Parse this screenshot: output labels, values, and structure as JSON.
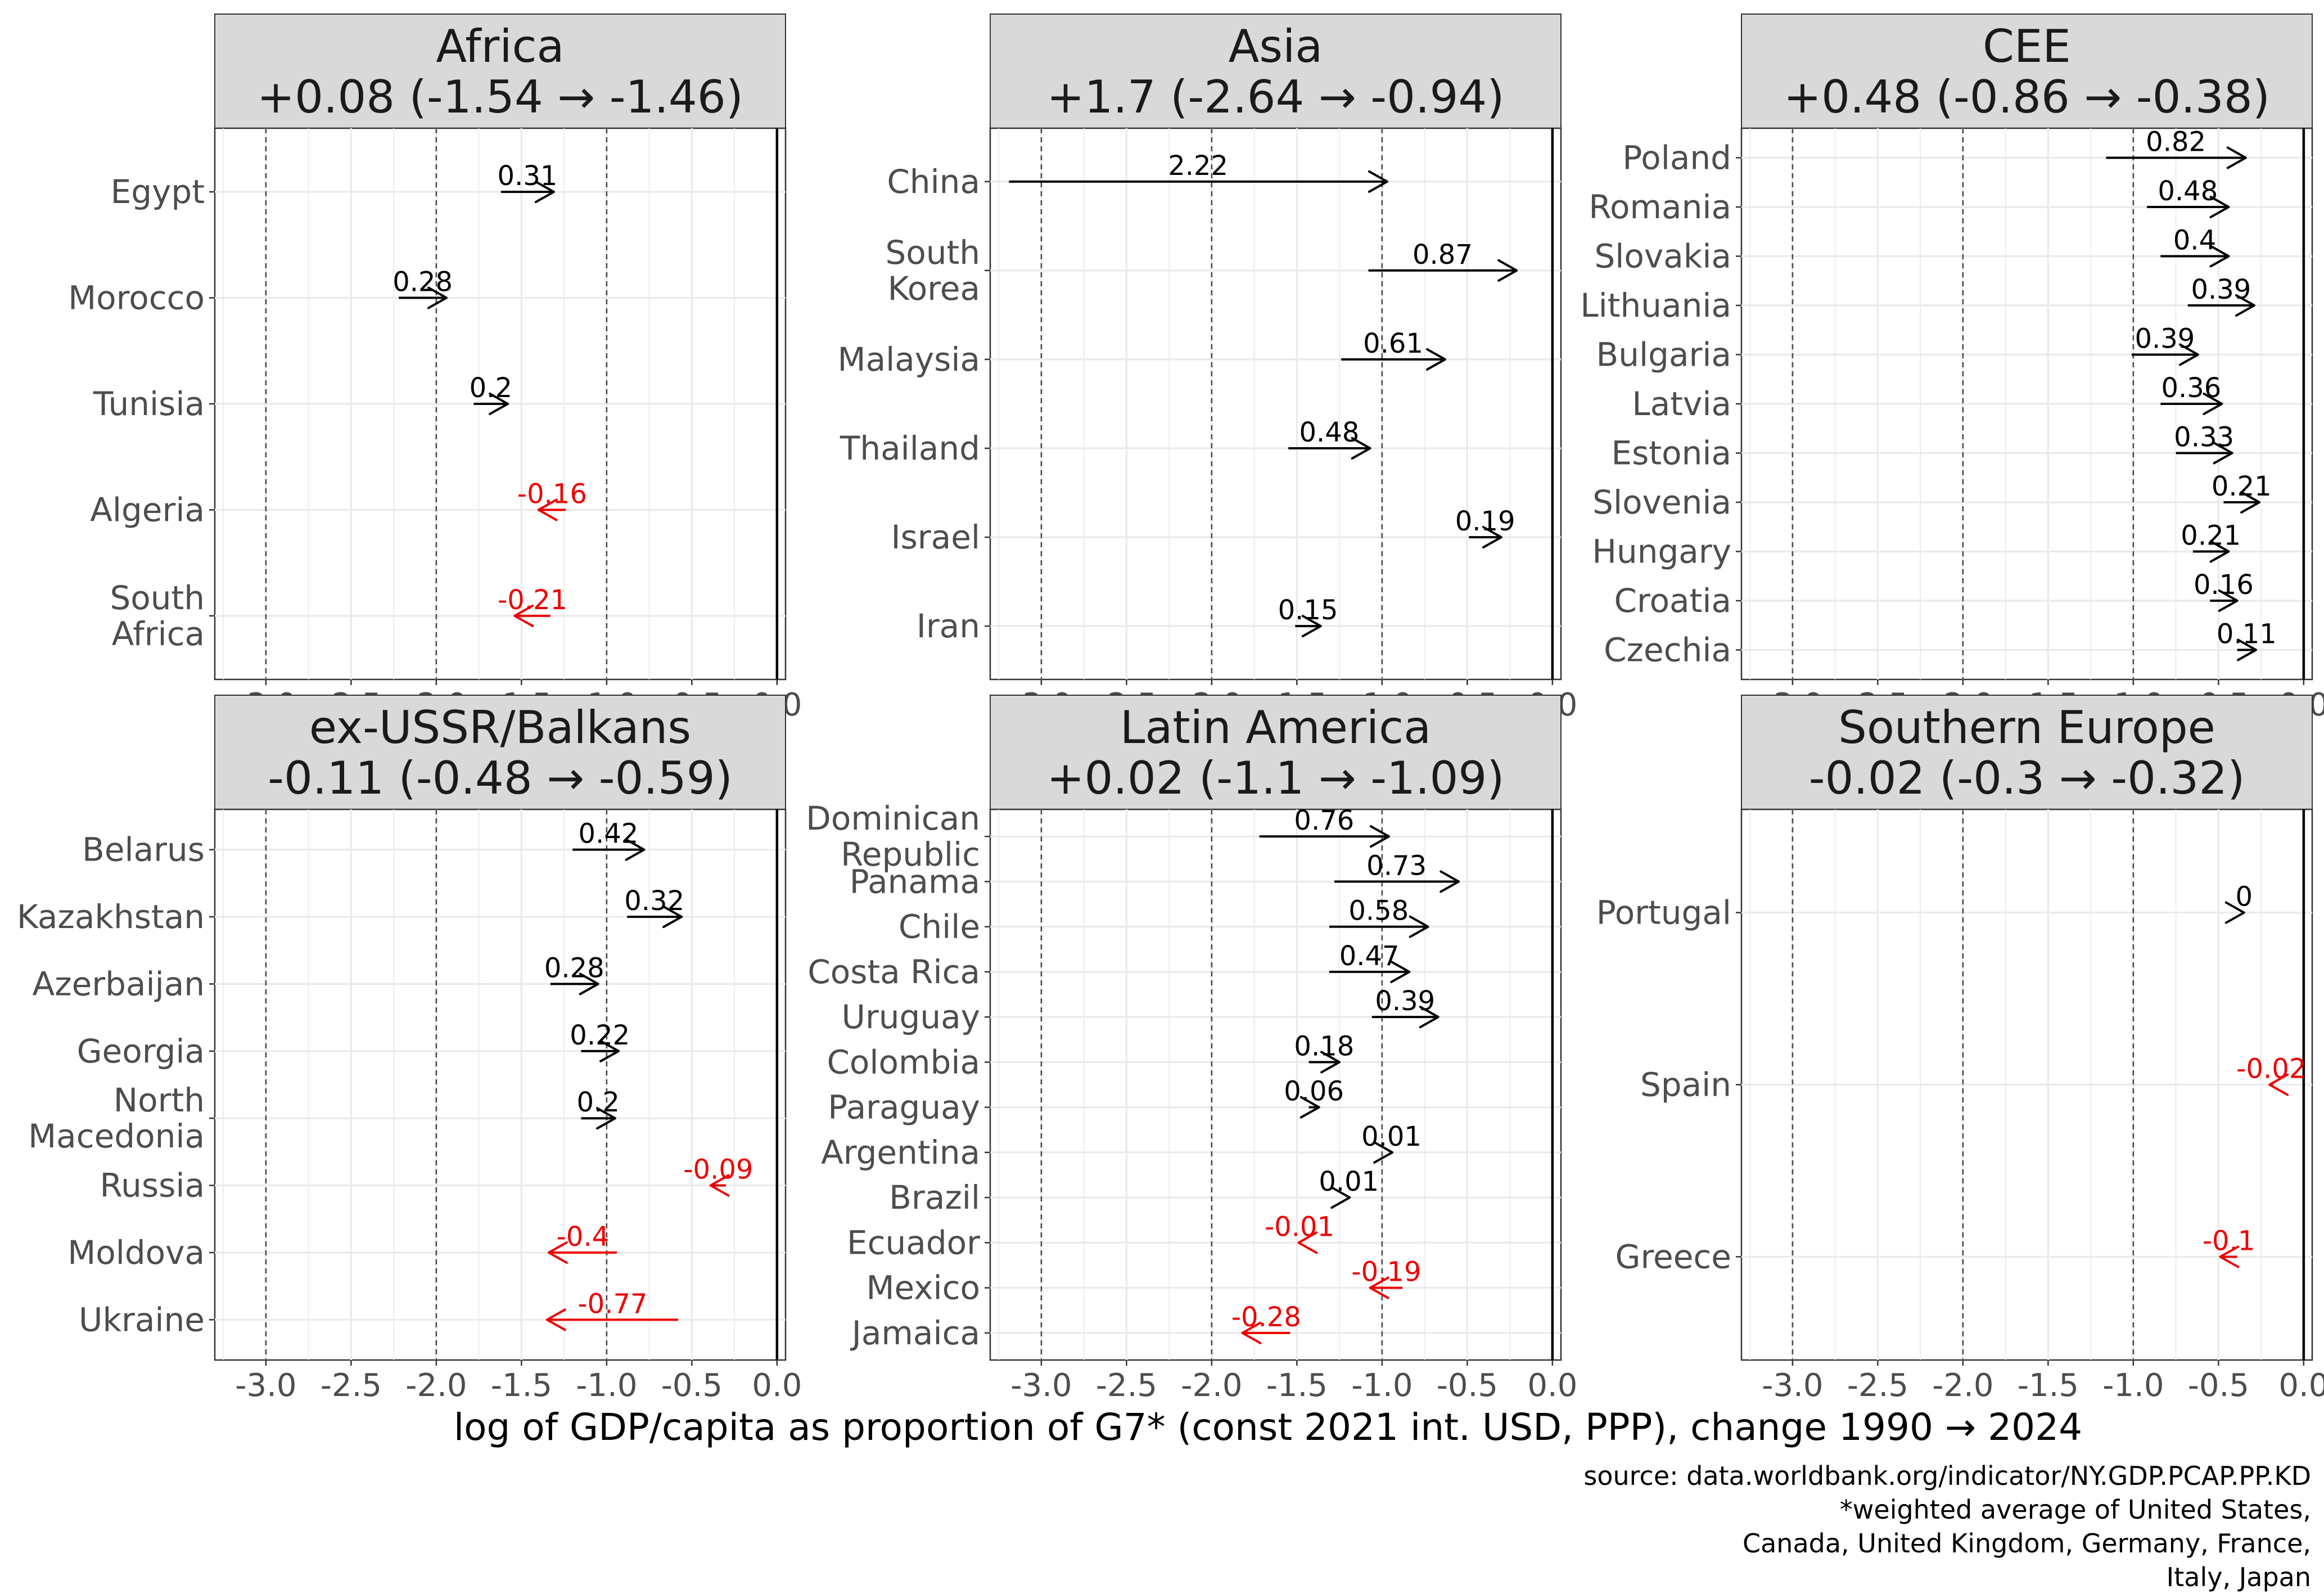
{
  "chart_data": {
    "type": "arrow",
    "xlabel": "log of GDP/capita as proportion of G7* (const 2021 int. USD, PPP), change 1990 → 2024",
    "caption_lines": [
      "source: data.worldbank.org/indicator/NY.GDP.PCAP.PP.KD",
      "*weighted average of United States,",
      "Canada, United Kingdom, Germany, France,",
      "Italy, Japan"
    ],
    "xlim": [
      -3.3,
      0.05
    ],
    "x_ticks": [
      -3.0,
      -2.5,
      -2.0,
      -1.5,
      -1.0,
      -0.5,
      0.0
    ],
    "x_tick_labels": [
      "-3.0",
      "-2.5",
      "-2.0",
      "-1.5",
      "-1.0",
      "-0.5",
      "0.0"
    ],
    "reference_lines": [
      -3,
      -2,
      -1,
      0
    ],
    "colors": {
      "positive": "#000000",
      "negative": "#ee0000"
    },
    "panels": [
      {
        "title_line1": "Africa",
        "title_line2": "+0.08 (-1.54 → -1.46)",
        "countries": [
          {
            "name": [
              "Egypt"
            ],
            "start": -1.62,
            "end": -1.31,
            "label": "0.31"
          },
          {
            "name": [
              "Morocco"
            ],
            "start": -2.22,
            "end": -1.94,
            "label": "0.28"
          },
          {
            "name": [
              "Tunisia"
            ],
            "start": -1.78,
            "end": -1.58,
            "label": "0.2"
          },
          {
            "name": [
              "Algeria"
            ],
            "start": -1.24,
            "end": -1.4,
            "label": "-0.16"
          },
          {
            "name": [
              "South",
              "Africa"
            ],
            "start": -1.33,
            "end": -1.54,
            "label": "-0.21"
          }
        ]
      },
      {
        "title_line1": "Asia",
        "title_line2": "+1.7 (-2.64 → -0.94)",
        "countries": [
          {
            "name": [
              "China"
            ],
            "start": -3.19,
            "end": -0.97,
            "label": "2.22"
          },
          {
            "name": [
              "South",
              "Korea"
            ],
            "start": -1.08,
            "end": -0.21,
            "label": "0.87"
          },
          {
            "name": [
              "Malaysia"
            ],
            "start": -1.24,
            "end": -0.63,
            "label": "0.61"
          },
          {
            "name": [
              "Thailand"
            ],
            "start": -1.55,
            "end": -1.07,
            "label": "0.48"
          },
          {
            "name": [
              "Israel"
            ],
            "start": -0.49,
            "end": -0.3,
            "label": "0.19"
          },
          {
            "name": [
              "Iran"
            ],
            "start": -1.51,
            "end": -1.36,
            "label": "0.15"
          }
        ]
      },
      {
        "title_line1": "CEE",
        "title_line2": "+0.48 (-0.86 → -0.38)",
        "countries": [
          {
            "name": [
              "Poland"
            ],
            "start": -1.16,
            "end": -0.34,
            "label": "0.82"
          },
          {
            "name": [
              "Romania"
            ],
            "start": -0.92,
            "end": -0.44,
            "label": "0.48"
          },
          {
            "name": [
              "Slovakia"
            ],
            "start": -0.84,
            "end": -0.44,
            "label": "0.4"
          },
          {
            "name": [
              "Lithuania"
            ],
            "start": -0.68,
            "end": -0.29,
            "label": "0.39"
          },
          {
            "name": [
              "Bulgaria"
            ],
            "start": -1.01,
            "end": -0.62,
            "label": "0.39"
          },
          {
            "name": [
              "Latvia"
            ],
            "start": -0.84,
            "end": -0.48,
            "label": "0.36"
          },
          {
            "name": [
              "Estonia"
            ],
            "start": -0.75,
            "end": -0.42,
            "label": "0.33"
          },
          {
            "name": [
              "Slovenia"
            ],
            "start": -0.47,
            "end": -0.26,
            "label": "0.21"
          },
          {
            "name": [
              "Hungary"
            ],
            "start": -0.65,
            "end": -0.44,
            "label": "0.21"
          },
          {
            "name": [
              "Croatia"
            ],
            "start": -0.55,
            "end": -0.39,
            "label": "0.16"
          },
          {
            "name": [
              "Czechia"
            ],
            "start": -0.39,
            "end": -0.28,
            "label": "0.11"
          }
        ]
      },
      {
        "title_line1": "ex-USSR/Balkans",
        "title_line2": "-0.11 (-0.48 → -0.59)",
        "countries": [
          {
            "name": [
              "Belarus"
            ],
            "start": -1.2,
            "end": -0.78,
            "label": "0.42"
          },
          {
            "name": [
              "Kazakhstan"
            ],
            "start": -0.88,
            "end": -0.56,
            "label": "0.32"
          },
          {
            "name": [
              "Azerbaijan"
            ],
            "start": -1.33,
            "end": -1.05,
            "label": "0.28"
          },
          {
            "name": [
              "Georgia"
            ],
            "start": -1.15,
            "end": -0.93,
            "label": "0.22"
          },
          {
            "name": [
              "North",
              "Macedonia"
            ],
            "start": -1.15,
            "end": -0.95,
            "label": "0.2"
          },
          {
            "name": [
              "Russia"
            ],
            "start": -0.3,
            "end": -0.39,
            "label": "-0.09"
          },
          {
            "name": [
              "Moldova"
            ],
            "start": -0.94,
            "end": -1.34,
            "label": "-0.4"
          },
          {
            "name": [
              "Ukraine"
            ],
            "start": -0.58,
            "end": -1.35,
            "label": "-0.77"
          }
        ]
      },
      {
        "title_line1": "Latin America",
        "title_line2": "+0.02 (-1.1 → -1.09)",
        "countries": [
          {
            "name": [
              "Dominican",
              "Republic"
            ],
            "start": -1.72,
            "end": -0.96,
            "label": "0.76"
          },
          {
            "name": [
              "Panama"
            ],
            "start": -1.28,
            "end": -0.55,
            "label": "0.73"
          },
          {
            "name": [
              "Chile"
            ],
            "start": -1.31,
            "end": -0.73,
            "label": "0.58"
          },
          {
            "name": [
              "Costa Rica"
            ],
            "start": -1.31,
            "end": -0.84,
            "label": "0.47"
          },
          {
            "name": [
              "Uruguay"
            ],
            "start": -1.06,
            "end": -0.67,
            "label": "0.39"
          },
          {
            "name": [
              "Colombia"
            ],
            "start": -1.43,
            "end": -1.25,
            "label": "0.18"
          },
          {
            "name": [
              "Paraguay"
            ],
            "start": -1.43,
            "end": -1.37,
            "label": "0.06"
          },
          {
            "name": [
              "Argentina"
            ],
            "start": -0.95,
            "end": -0.94,
            "label": "0.01"
          },
          {
            "name": [
              "Brazil"
            ],
            "start": -1.2,
            "end": -1.19,
            "label": "0.01"
          },
          {
            "name": [
              "Ecuador"
            ],
            "start": -1.48,
            "end": -1.49,
            "label": "-0.01"
          },
          {
            "name": [
              "Mexico"
            ],
            "start": -0.88,
            "end": -1.07,
            "label": "-0.19"
          },
          {
            "name": [
              "Jamaica"
            ],
            "start": -1.54,
            "end": -1.82,
            "label": "-0.28"
          }
        ]
      },
      {
        "title_line1": "Southern Europe",
        "title_line2": "-0.02 (-0.3 → -0.32)",
        "countries": [
          {
            "name": [
              "Portugal"
            ],
            "start": -0.35,
            "end": -0.35,
            "label": "0"
          },
          {
            "name": [
              "Spain"
            ],
            "start": -0.18,
            "end": -0.2,
            "label": "-0.02"
          },
          {
            "name": [
              "Greece"
            ],
            "start": -0.39,
            "end": -0.49,
            "label": "-0.1"
          }
        ]
      }
    ]
  }
}
